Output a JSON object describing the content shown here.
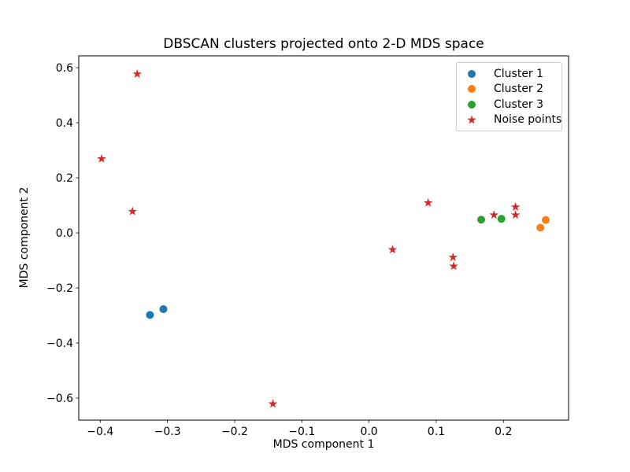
{
  "chart_data": {
    "type": "scatter",
    "title": "DBSCAN clusters projected onto 2-D MDS space",
    "xlabel": "MDS component 1",
    "ylabel": "MDS component 2",
    "xlim": [
      -0.432,
      0.297
    ],
    "ylim": [
      -0.68,
      0.643
    ],
    "grid": false,
    "legend_position": "upper right",
    "xticks": {
      "values": [
        -0.4,
        -0.3,
        -0.2,
        -0.1,
        0.0,
        0.1,
        0.2
      ],
      "labels": [
        "−0.4",
        "−0.3",
        "−0.2",
        "−0.1",
        "0.0",
        "0.1",
        "0.2"
      ]
    },
    "yticks": {
      "values": [
        -0.6,
        -0.4,
        -0.2,
        0.0,
        0.2,
        0.4,
        0.6
      ],
      "labels": [
        "−0.6",
        "−0.4",
        "−0.2",
        "0.0",
        "0.2",
        "0.4",
        "0.6"
      ]
    },
    "series": [
      {
        "name": "Cluster 1",
        "marker": "circle",
        "color": "#1f77b4",
        "points": [
          [
            -0.326,
            -0.298
          ],
          [
            -0.306,
            -0.277
          ]
        ]
      },
      {
        "name": "Cluster 2",
        "marker": "circle",
        "color": "#ff7f0e",
        "points": [
          [
            0.255,
            0.019
          ],
          [
            0.263,
            0.047
          ]
        ]
      },
      {
        "name": "Cluster 3",
        "marker": "circle",
        "color": "#2ca02c",
        "points": [
          [
            0.167,
            0.048
          ],
          [
            0.197,
            0.051
          ]
        ]
      },
      {
        "name": "Noise points",
        "marker": "star",
        "color": "#d62728",
        "points": [
          [
            -0.398,
            0.269
          ],
          [
            -0.345,
            0.577
          ],
          [
            -0.352,
            0.078
          ],
          [
            -0.143,
            -0.621
          ],
          [
            0.035,
            -0.061
          ],
          [
            0.088,
            0.109
          ],
          [
            0.186,
            0.065
          ],
          [
            0.218,
            0.065
          ],
          [
            0.218,
            0.094
          ],
          [
            0.125,
            -0.089
          ],
          [
            0.126,
            -0.121
          ]
        ]
      }
    ]
  }
}
